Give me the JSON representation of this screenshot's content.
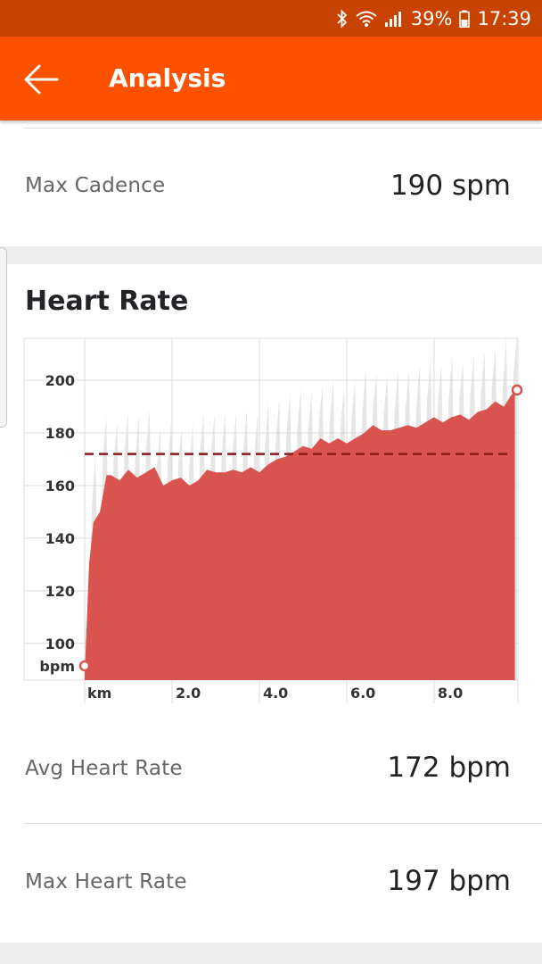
{
  "status_bar": {
    "battery": "39%",
    "time": "17:39"
  },
  "app_bar": {
    "title": "Analysis",
    "back_icon": "arrow-left-icon"
  },
  "max_cadence": {
    "label": "Max Cadence",
    "value": "190 spm"
  },
  "heart_rate": {
    "title": "Heart Rate",
    "avg": {
      "label": "Avg Heart Rate",
      "value": "172 bpm"
    },
    "max": {
      "label": "Max Heart Rate",
      "value": "197 bpm"
    }
  },
  "colors": {
    "accent": "#fc5200",
    "status_bar": "#c84300",
    "hr_fill": "#d9534f",
    "avg_line": "#8b1a1a"
  },
  "chart_data": {
    "type": "area",
    "xlabel": "km",
    "ylabel": "bpm",
    "x_ticks": [
      "2.0",
      "4.0",
      "6.0",
      "8.0"
    ],
    "y_ticks": [
      "100",
      "120",
      "140",
      "160",
      "180",
      "200"
    ],
    "ylim": [
      86,
      216
    ],
    "xlim": [
      0,
      9.9
    ],
    "average_line": 172,
    "series": [
      {
        "x": [
          0,
          0.1,
          0.2,
          0.35,
          0.5,
          0.6,
          0.8,
          1.0,
          1.2,
          1.4,
          1.6,
          1.8,
          2.0,
          2.2,
          2.4,
          2.6,
          2.8,
          3.0,
          3.2,
          3.4,
          3.6,
          3.8,
          4.0,
          4.2,
          4.4,
          4.6,
          4.8,
          5.0,
          5.2,
          5.4,
          5.6,
          5.8,
          6.0,
          6.2,
          6.4,
          6.6,
          6.8,
          7.0,
          7.2,
          7.4,
          7.6,
          7.8,
          8.0,
          8.2,
          8.4,
          8.6,
          8.8,
          9.0,
          9.2,
          9.4,
          9.6,
          9.75,
          9.85
        ],
        "values": [
          88,
          130,
          146,
          150,
          164,
          164,
          162,
          166,
          163,
          165,
          167,
          160,
          162,
          163,
          160,
          162,
          166,
          165,
          165,
          166,
          165,
          167,
          165,
          168,
          170,
          171,
          173,
          175,
          174,
          178,
          176,
          178,
          176,
          178,
          180,
          183,
          181,
          181,
          182,
          183,
          182,
          184,
          186,
          184,
          186,
          187,
          185,
          188,
          189,
          192,
          190,
          194,
          196
        ]
      }
    ]
  }
}
